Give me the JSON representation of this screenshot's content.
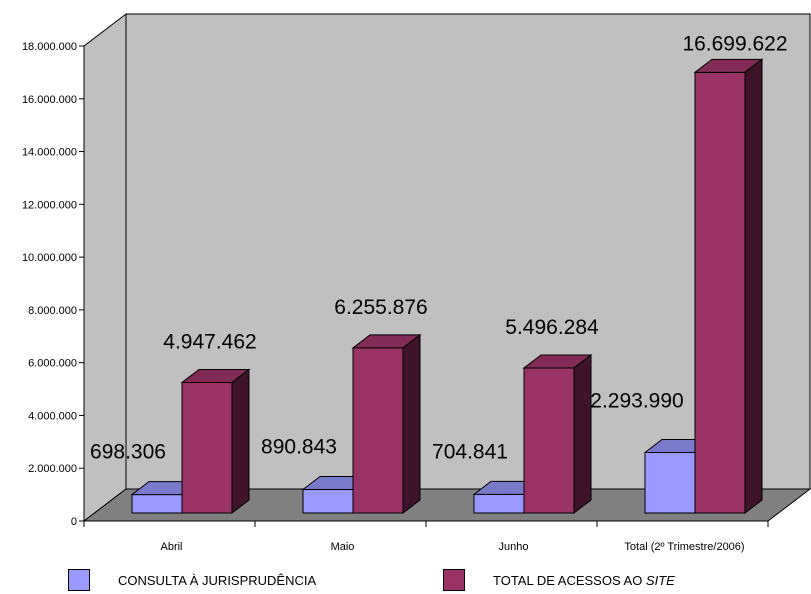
{
  "chart_data": {
    "type": "bar",
    "categories": [
      "Abril",
      "Maio",
      "Junho",
      "Total (2º Trimestre/2006)"
    ],
    "series": [
      {
        "name": "CONSULTA À JURISPRUDÊNCIA",
        "values": [
          698306,
          890843,
          704841,
          2293990
        ],
        "labels": [
          "698.306",
          "890.843",
          "704.841",
          "2.293.990"
        ],
        "color": "#9999ff"
      },
      {
        "name": "TOTAL DE ACESSOS AO SITE",
        "values": [
          4947462,
          6255876,
          5496284,
          16699622
        ],
        "labels": [
          "4.947.462",
          "6.255.876",
          "5.496.284",
          "16.699.622"
        ],
        "color": "#993366"
      }
    ],
    "yticks": [
      "0",
      "2.000.000",
      "4.000.000",
      "6.000.000",
      "8.000.000",
      "10.000.000",
      "12.000.000",
      "14.000.000",
      "16.000.000",
      "18.000.000"
    ],
    "ylim": [
      0,
      18000000
    ],
    "legend_position": "bottom",
    "wall_color": "#c0c0c0",
    "floor_color": "#808080"
  },
  "legend": {
    "item1_prefix": "CONSULTA À JURISPRUDÊNCIA",
    "item2_prefix": "TOTAL DE ACESSOS AO ",
    "item2_italic": "SITE"
  }
}
